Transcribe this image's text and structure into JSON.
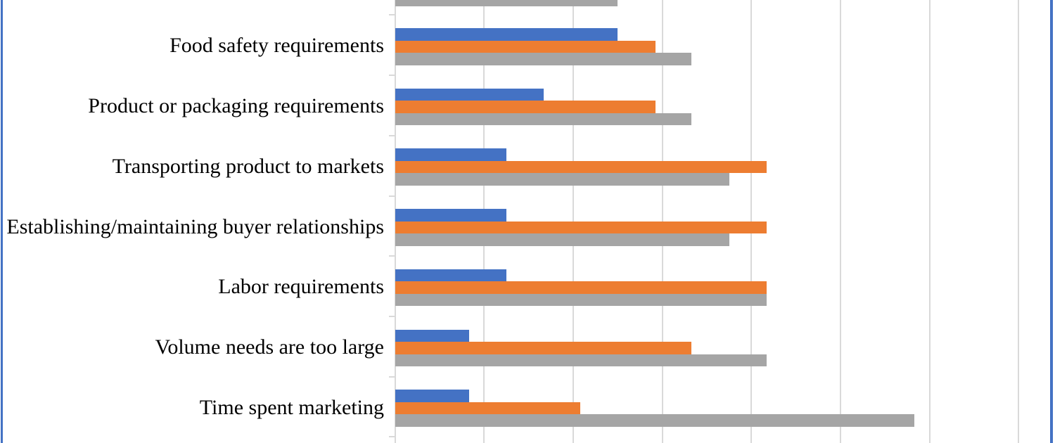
{
  "figure": {
    "kind": "embedded-excel-style-horizontal-bar-chart, cropped at top and bottom",
    "border_color": "#4472C4",
    "background": "#ffffff"
  },
  "chart_data": {
    "type": "bar",
    "orientation": "horizontal",
    "title": "",
    "categories": [
      "Food safety requirements",
      "Product or packaging requirements",
      "Transporting product to markets",
      "Establishing/maintaining buyer relationships",
      "Labor requirements",
      "Volume needs are too large",
      "Time spent marketing"
    ],
    "series": [
      {
        "name": "blue-series",
        "color": "#4472C4",
        "values": [
          25.0,
          16.7,
          12.5,
          12.5,
          12.5,
          8.3,
          8.3
        ]
      },
      {
        "name": "orange-series",
        "color": "#ED7D31",
        "values": [
          29.2,
          29.2,
          41.7,
          41.7,
          41.7,
          33.3,
          20.8
        ]
      },
      {
        "name": "gray-series",
        "color": "#A5A5A5",
        "values": [
          33.3,
          33.3,
          37.5,
          37.5,
          41.7,
          41.7,
          58.3
        ]
      }
    ],
    "partial_top_category": {
      "note": "category cut off by top crop; only bottom sliver of its gray bar is visible",
      "visible_series": "gray-series",
      "value": 25.0
    },
    "xlim": [
      0,
      70
    ],
    "gridline_step": 10,
    "gridline_color": "#D9D9D9",
    "grid": "on",
    "xlabel": "",
    "ylabel": "",
    "axis_tick_labels_visible": false,
    "legend_visible": false
  }
}
